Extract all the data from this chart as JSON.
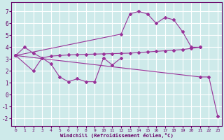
{
  "xlabel": "Windchill (Refroidissement éolien,°C)",
  "bg_color": "#ceeaea",
  "grid_color": "#ffffff",
  "line_color": "#993399",
  "xlim": [
    -0.5,
    23.5
  ],
  "ylim": [
    -2.6,
    7.8
  ],
  "xticks": [
    0,
    1,
    2,
    3,
    4,
    5,
    6,
    7,
    8,
    9,
    10,
    11,
    12,
    13,
    14,
    15,
    16,
    17,
    18,
    19,
    20,
    21,
    22,
    23
  ],
  "yticks": [
    -2,
    -1,
    0,
    1,
    2,
    3,
    4,
    5,
    6,
    7
  ],
  "series": [
    {
      "x": [
        0,
        12,
        13,
        14,
        15,
        16,
        17,
        18,
        19,
        20,
        21
      ],
      "y": [
        3.3,
        5.1,
        6.8,
        7.0,
        6.8,
        6.0,
        6.5,
        6.3,
        5.3,
        4.0,
        4.0
      ]
    },
    {
      "x": [
        0,
        1,
        2,
        3,
        4,
        5,
        6,
        7,
        8,
        9,
        10,
        11,
        12,
        13,
        14,
        15,
        16,
        17,
        18,
        19,
        20,
        21
      ],
      "y": [
        3.3,
        4.0,
        3.5,
        3.1,
        3.25,
        3.3,
        3.35,
        3.38,
        3.4,
        3.42,
        3.44,
        3.46,
        3.48,
        3.5,
        3.55,
        3.6,
        3.65,
        3.7,
        3.75,
        3.8,
        3.9,
        4.0
      ]
    },
    {
      "x": [
        0,
        2,
        3,
        4,
        5,
        6,
        7,
        8,
        9,
        10,
        11,
        12
      ],
      "y": [
        3.3,
        2.0,
        3.1,
        2.6,
        1.5,
        1.1,
        1.35,
        1.1,
        1.1,
        3.1,
        2.5,
        3.1
      ]
    },
    {
      "x": [
        0,
        21,
        22,
        23
      ],
      "y": [
        3.3,
        1.5,
        1.5,
        -1.8
      ]
    }
  ]
}
